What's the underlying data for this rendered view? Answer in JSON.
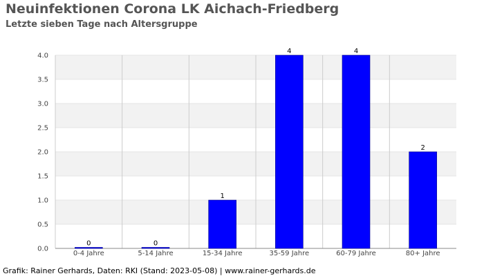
{
  "header": {
    "title": "Neuinfektionen Corona LK Aichach-Friedberg",
    "subtitle": "Letzte sieben Tage nach Altersgruppe"
  },
  "footer": {
    "credit": "Grafik: Rainer Gerhards, Daten: RKI (Stand: 2023-05-08) | www.rainer-gerhards.de"
  },
  "colors": {
    "bar": "#0000ff",
    "band": "#f2f2f2",
    "grid": "#cccccc",
    "axis": "#888888"
  },
  "chart_data": {
    "type": "bar",
    "categories": [
      "0-4 Jahre",
      "5-14 Jahre",
      "15-34 Jahre",
      "35-59 Jahre",
      "60-79 Jahre",
      "80+ Jahre"
    ],
    "values": [
      0,
      0,
      1,
      4,
      4,
      2
    ],
    "data_labels": [
      "0",
      "0",
      "1",
      "4",
      "4",
      "2"
    ],
    "y_ticks": [
      "0.0",
      "0.5",
      "1.0",
      "1.5",
      "2.0",
      "2.5",
      "3.0",
      "3.5",
      "4.0"
    ],
    "ylim": [
      0,
      4
    ],
    "grid": true,
    "legend": "none"
  }
}
